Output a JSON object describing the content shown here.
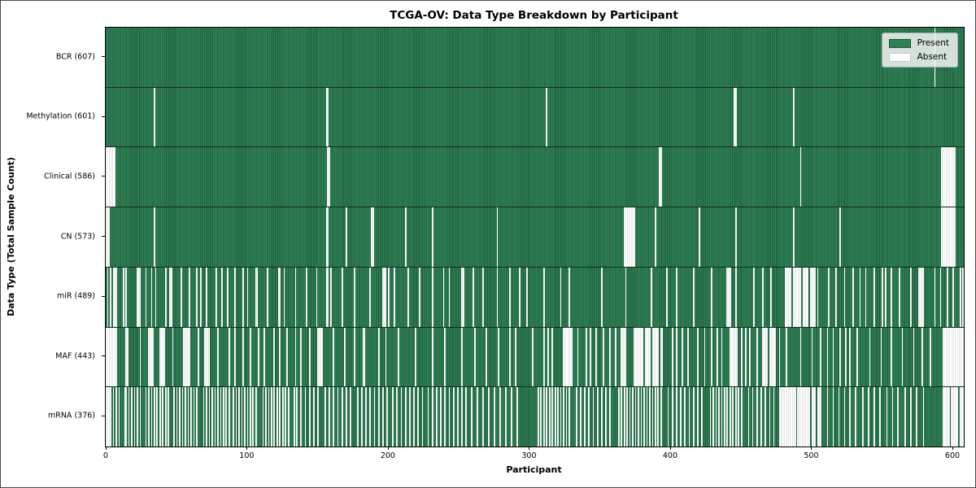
{
  "title": "TCGA-OV: Data Type Breakdown by Participant",
  "xlabel": "Participant",
  "ylabel": "Data Type (Total Sample Count)",
  "legend": {
    "present_label": "Present",
    "absent_label": "Absent",
    "present_color": "#2f8055",
    "absent_color": "#ffffff"
  },
  "colors": {
    "present_fill": "#2f8055",
    "present_edge": "#1d5c3a",
    "absent_fill": "#ffffff",
    "separator": "#000000",
    "legend_bg": "#f2f4f2"
  },
  "chart_data": {
    "type": "heatmap",
    "title": "TCGA-OV: Data Type Breakdown by Participant",
    "xlabel": "Participant",
    "ylabel": "Data Type (Total Sample Count)",
    "participants_total": 608,
    "x_axis": {
      "ticks": [
        0,
        100,
        200,
        300,
        400,
        500,
        600
      ],
      "range": [
        0,
        608
      ]
    },
    "legend_entries": [
      {
        "label": "Present",
        "color": "#2f8055"
      },
      {
        "label": "Absent",
        "color": "#ffffff"
      }
    ],
    "rows": [
      {
        "name": "BCR",
        "label": "BCR (607)",
        "present_count": 607,
        "absent_participants": [
          587
        ]
      },
      {
        "name": "Methylation",
        "label": "Methylation (601)",
        "present_count": 601,
        "absent_participants": [
          34,
          156,
          157,
          312,
          445,
          446,
          487
        ]
      },
      {
        "name": "Clinical",
        "label": "Clinical (586)",
        "present_count": 586,
        "absent_participants": [
          0,
          1,
          2,
          3,
          4,
          5,
          6,
          157,
          158,
          392,
          393,
          492,
          592,
          593,
          594,
          595,
          596,
          597,
          598,
          599,
          600,
          601
        ]
      },
      {
        "name": "CN",
        "label": "CN (573)",
        "present_count": 573,
        "absent_participants": [
          0,
          1,
          2,
          34,
          156,
          157,
          170,
          188,
          189,
          212,
          231,
          277,
          367,
          368,
          369,
          370,
          371,
          372,
          373,
          374,
          389,
          420,
          446,
          487,
          520,
          592,
          593,
          594,
          595,
          596,
          597,
          598,
          599,
          600,
          601
        ]
      },
      {
        "name": "miR",
        "label": "miR (489)",
        "present_count": 489,
        "absent_participants": [
          1,
          3,
          5,
          6,
          7,
          12,
          14,
          22,
          23,
          24,
          28,
          32,
          35,
          42,
          45,
          46,
          53,
          59,
          64,
          67,
          71,
          78,
          82,
          86,
          91,
          97,
          100,
          106,
          107,
          114,
          122,
          123,
          126,
          134,
          142,
          149,
          156,
          157,
          159,
          167,
          176,
          187,
          196,
          197,
          198,
          200,
          204,
          214,
          222,
          231,
          239,
          243,
          252,
          253,
          260,
          267,
          277,
          286,
          293,
          298,
          310,
          322,
          328,
          351,
          368,
          386,
          397,
          404,
          416,
          429,
          440,
          441,
          442,
          446,
          459,
          465,
          471,
          481,
          482,
          483,
          484,
          485,
          487,
          488,
          489,
          490,
          491,
          492,
          494,
          495,
          496,
          497,
          499,
          500,
          501,
          502,
          504,
          512,
          517,
          523,
          529,
          534,
          538,
          544,
          550,
          552,
          556,
          562,
          570,
          576,
          577,
          578,
          579,
          587,
          591,
          596,
          600,
          605,
          607
        ]
      },
      {
        "name": "MAF",
        "label": "MAF (443)",
        "present_count": 443,
        "absent_participants": [
          0,
          1,
          2,
          3,
          4,
          5,
          6,
          7,
          14,
          15,
          24,
          30,
          31,
          32,
          33,
          38,
          39,
          40,
          41,
          47,
          55,
          56,
          57,
          58,
          59,
          65,
          70,
          71,
          72,
          73,
          79,
          87,
          91,
          97,
          102,
          108,
          112,
          119,
          123,
          128,
          134,
          138,
          144,
          150,
          151,
          152,
          153,
          161,
          169,
          176,
          182,
          183,
          193,
          198,
          207,
          219,
          231,
          240,
          252,
          261,
          269,
          278,
          286,
          290,
          302,
          310,
          313,
          316,
          324,
          325,
          326,
          327,
          328,
          329,
          330,
          334,
          340,
          343,
          347,
          352,
          357,
          361,
          365,
          366,
          367,
          368,
          374,
          375,
          376,
          377,
          378,
          379,
          380,
          382,
          383,
          384,
          385,
          387,
          388,
          389,
          390,
          391,
          393,
          394,
          401,
          404,
          408,
          412,
          419,
          424,
          429,
          433,
          436,
          442,
          443,
          444,
          445,
          446,
          447,
          450,
          453,
          456,
          461,
          465,
          466,
          467,
          468,
          470,
          471,
          472,
          473,
          474,
          477,
          482,
          492,
          500,
          506,
          511,
          515,
          520,
          524,
          527,
          532,
          541,
          549,
          556,
          564,
          572,
          578,
          584,
          593,
          594,
          595,
          596,
          597,
          598,
          599,
          600,
          601,
          602,
          603,
          604,
          605,
          606,
          607
        ]
      },
      {
        "name": "mRNA",
        "label": "mRNA (376)",
        "present_count": 376,
        "absent_participants": [
          0,
          1,
          2,
          3,
          5,
          7,
          9,
          13,
          14,
          16,
          18,
          20,
          22,
          24,
          28,
          30,
          32,
          34,
          36,
          38,
          40,
          42,
          44,
          48,
          50,
          52,
          54,
          56,
          58,
          60,
          62,
          64,
          69,
          71,
          73,
          75,
          77,
          79,
          81,
          83,
          85,
          87,
          90,
          92,
          94,
          96,
          98,
          100,
          102,
          104,
          106,
          111,
          113,
          115,
          117,
          119,
          121,
          123,
          125,
          127,
          129,
          133,
          135,
          138,
          141,
          144,
          147,
          150,
          155,
          158,
          161,
          164,
          167,
          170,
          173,
          178,
          181,
          184,
          187,
          190,
          193,
          196,
          199,
          203,
          206,
          209,
          212,
          215,
          218,
          221,
          224,
          228,
          231,
          234,
          237,
          240,
          243,
          246,
          249,
          252,
          255,
          259,
          263,
          267,
          271,
          275,
          279,
          283,
          287,
          291,
          306,
          308,
          310,
          312,
          314,
          316,
          318,
          320,
          322,
          324,
          326,
          328,
          333,
          336,
          339,
          342,
          345,
          348,
          351,
          354,
          357,
          363,
          365,
          367,
          369,
          371,
          373,
          375,
          377,
          379,
          381,
          383,
          385,
          387,
          389,
          391,
          393,
          398,
          401,
          404,
          407,
          410,
          413,
          416,
          419,
          422,
          428,
          430,
          432,
          434,
          436,
          438,
          440,
          442,
          444,
          446,
          448,
          450,
          455,
          458,
          461,
          464,
          467,
          470,
          473,
          477,
          478,
          479,
          480,
          481,
          482,
          483,
          484,
          485,
          486,
          487,
          488,
          490,
          491,
          492,
          493,
          494,
          495,
          496,
          497,
          498,
          500,
          501,
          502,
          504,
          505,
          506,
          511,
          515,
          519,
          523,
          527,
          531,
          536,
          540,
          544,
          548,
          553,
          557,
          561,
          566,
          570,
          574,
          579,
          593,
          594,
          595,
          596,
          597,
          599,
          600,
          601,
          602,
          603,
          605,
          606,
          607
        ]
      }
    ]
  }
}
